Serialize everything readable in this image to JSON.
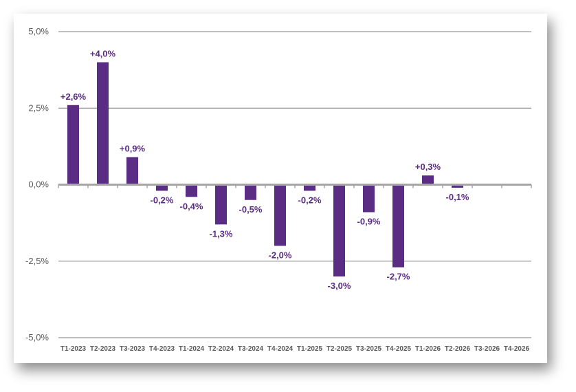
{
  "chart_data": {
    "type": "bar",
    "categories": [
      "T1-2023",
      "T2-2023",
      "T3-2023",
      "T4-2023",
      "T1-2024",
      "T2-2024",
      "T3-2024",
      "T4-2024",
      "T1-2025",
      "T2-2025",
      "T3-2025",
      "T4-2025",
      "T1-2026",
      "T2-2026",
      "T3-2026",
      "T4-2026"
    ],
    "values": [
      2.6,
      4.0,
      0.9,
      -0.2,
      -0.4,
      -1.3,
      -0.5,
      -2.0,
      -0.2,
      -3.0,
      -0.9,
      -2.7,
      0.3,
      -0.1,
      null,
      null
    ],
    "data_labels": [
      "+2,6%",
      "+4,0%",
      "+0,9%",
      "-0,2%",
      "-0,4%",
      "-1,3%",
      "-0,5%",
      "-2,0%",
      "-0,2%",
      "-3,0%",
      "-0,9%",
      "-2,7%",
      "+0,3%",
      "-0,1%",
      "",
      ""
    ],
    "ylim": [
      -5,
      5
    ],
    "yticks": [
      5,
      2.5,
      0,
      -2.5,
      -5
    ],
    "ytick_labels": [
      "5,0%",
      "2,5%",
      "0,0%",
      "-2,5%",
      "-5,0%"
    ],
    "title": "",
    "xlabel": "",
    "ylabel": "",
    "grid": true,
    "legend": "none",
    "bar_color": "#5b2c83",
    "label_color": "#5b2c83"
  }
}
